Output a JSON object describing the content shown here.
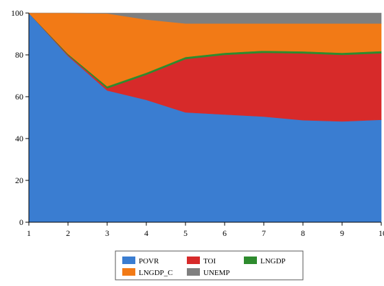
{
  "chart_data": {
    "type": "area",
    "stacked": true,
    "x": [
      1,
      2,
      3,
      4,
      5,
      6,
      7,
      8,
      9,
      10
    ],
    "ylim": [
      0,
      100
    ],
    "yticks": [
      0,
      20,
      40,
      60,
      80,
      100
    ],
    "xticks": [
      1,
      2,
      3,
      4,
      5,
      6,
      7,
      8,
      9,
      10
    ],
    "legend_position": "bottom-center",
    "grid": false,
    "series": [
      {
        "name": "POVR",
        "color": "#3a7dd1",
        "values": [
          100,
          79.5,
          63,
          58.5,
          52.5,
          51.5,
          50.5,
          48.8,
          48.2,
          49
        ]
      },
      {
        "name": "TOI",
        "color": "#d72a2a",
        "values": [
          0,
          0.5,
          1,
          12,
          25.5,
          28.5,
          30.5,
          31.9,
          31.8,
          31.8
        ]
      },
      {
        "name": "LNGDP",
        "color": "#2e8b2e",
        "values": [
          0,
          0.5,
          1,
          1,
          1,
          1,
          1,
          1,
          1,
          1
        ]
      },
      {
        "name": "LNGDP_C",
        "color": "#f27a16",
        "values": [
          0,
          19.5,
          34.8,
          25.4,
          16.0,
          14.0,
          13.0,
          13.3,
          14.0,
          13.2
        ]
      },
      {
        "name": "UNEMP",
        "color": "#7f7f7f",
        "values": [
          0,
          0,
          0.2,
          3.1,
          5.0,
          5.0,
          5.0,
          5.0,
          5.0,
          5.0
        ]
      }
    ],
    "legend_order": [
      "POVR",
      "TOI",
      "LNGDP",
      "LNGDP_C",
      "UNEMP"
    ]
  }
}
